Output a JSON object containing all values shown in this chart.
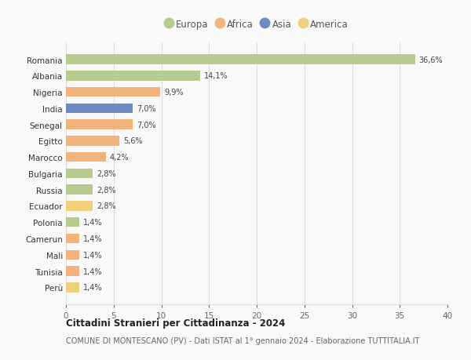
{
  "countries": [
    "Romania",
    "Albania",
    "Nigeria",
    "India",
    "Senegal",
    "Egitto",
    "Marocco",
    "Bulgaria",
    "Russia",
    "Ecuador",
    "Polonia",
    "Camerun",
    "Mali",
    "Tunisia",
    "Perù"
  ],
  "values": [
    36.6,
    14.1,
    9.9,
    7.0,
    7.0,
    5.6,
    4.2,
    2.8,
    2.8,
    2.8,
    1.4,
    1.4,
    1.4,
    1.4,
    1.4
  ],
  "labels": [
    "36,6%",
    "14,1%",
    "9,9%",
    "7,0%",
    "7,0%",
    "5,6%",
    "4,2%",
    "2,8%",
    "2,8%",
    "2,8%",
    "1,4%",
    "1,4%",
    "1,4%",
    "1,4%",
    "1,4%"
  ],
  "continents": [
    "Europa",
    "Europa",
    "Africa",
    "Asia",
    "Africa",
    "Africa",
    "Africa",
    "Europa",
    "Europa",
    "America",
    "Europa",
    "Africa",
    "Africa",
    "Africa",
    "America"
  ],
  "continent_colors": {
    "Europa": "#b5cc8e",
    "Africa": "#f0b47c",
    "Asia": "#6d8bbf",
    "America": "#f0d07c"
  },
  "legend_order": [
    "Europa",
    "Africa",
    "Asia",
    "America"
  ],
  "title": "Cittadini Stranieri per Cittadinanza - 2024",
  "subtitle": "COMUNE DI MONTESCANO (PV) - Dati ISTAT al 1° gennaio 2024 - Elaborazione TUTTITALIA.IT",
  "xlim": [
    0,
    40
  ],
  "xticks": [
    0,
    5,
    10,
    15,
    20,
    25,
    30,
    35,
    40
  ],
  "bg_color": "#f9f9f9",
  "grid_color": "#dddddd"
}
